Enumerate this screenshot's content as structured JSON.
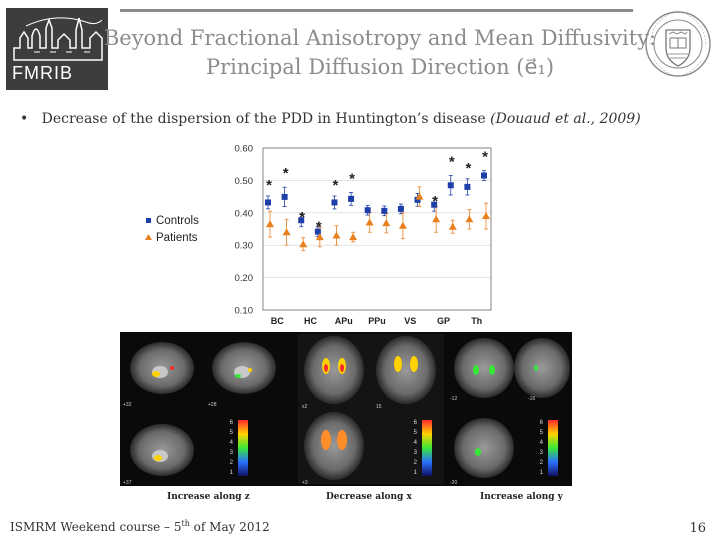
{
  "header": {
    "logo_left_text": "FMRIB",
    "title_line1": "Beyond Fractional Anisotropy and Mean Diffusivity:",
    "title_line2": "Principal Diffusion Direction (e⃗₁)"
  },
  "bullet": {
    "marker": "•",
    "text": "Decrease of the dispersion of the PDD in Huntington’s disease ",
    "citation": "(Douaud et al., 2009)"
  },
  "chart_data": {
    "type": "scatter",
    "title": "",
    "xlabel": "",
    "ylabel": "",
    "ylim": [
      0.1,
      0.6
    ],
    "yticks": [
      "0.60",
      "0.50",
      "0.40",
      "0.30",
      "0.20",
      "0.10"
    ],
    "categories": [
      "BC",
      "HC",
      "APu",
      "PPu",
      "VS",
      "GP",
      "Th"
    ],
    "legend": [
      "Controls",
      "Patients"
    ],
    "legend_position": "left",
    "series": [
      {
        "name": "Controls",
        "color": "#1f3fa8",
        "marker": "square",
        "values": [
          0.432,
          0.449,
          0.377,
          0.342,
          0.432,
          0.443,
          0.408,
          0.406,
          0.412,
          0.44,
          0.425,
          0.485,
          0.48,
          0.515
        ],
        "err": [
          0.02,
          0.03,
          0.02,
          0.015,
          0.02,
          0.02,
          0.015,
          0.015,
          0.015,
          0.02,
          0.02,
          0.03,
          0.025,
          0.015
        ]
      },
      {
        "name": "Patients",
        "color": "#e8801e",
        "marker": "triangle",
        "values": [
          0.365,
          0.34,
          0.303,
          0.325,
          0.33,
          0.325,
          0.37,
          0.368,
          0.36,
          0.45,
          0.38,
          0.357,
          0.38,
          0.39
        ],
        "err": [
          0.04,
          0.04,
          0.02,
          0.03,
          0.03,
          0.015,
          0.03,
          0.03,
          0.04,
          0.03,
          0.04,
          0.02,
          0.03,
          0.04
        ]
      }
    ],
    "significance_marker": "*",
    "significant_points": [
      0,
      1,
      2,
      3,
      4,
      5,
      10,
      11,
      12,
      13
    ]
  },
  "figure": {
    "colorbar_ticks": [
      "6",
      "5",
      "4",
      "3",
      "2",
      "1"
    ],
    "slice_labels": [
      "+32",
      "+28",
      "+37",
      "x2",
      "15",
      "+3",
      "-12",
      "-16",
      "-20"
    ],
    "caption_left": "Increase along z",
    "caption_mid": "Decrease along x",
    "caption_right": "Increase along y"
  },
  "footer": {
    "course": "ISMRM Weekend course – 5",
    "course_sup": "th",
    "course_end": " of May 2012",
    "page_number": "16"
  }
}
